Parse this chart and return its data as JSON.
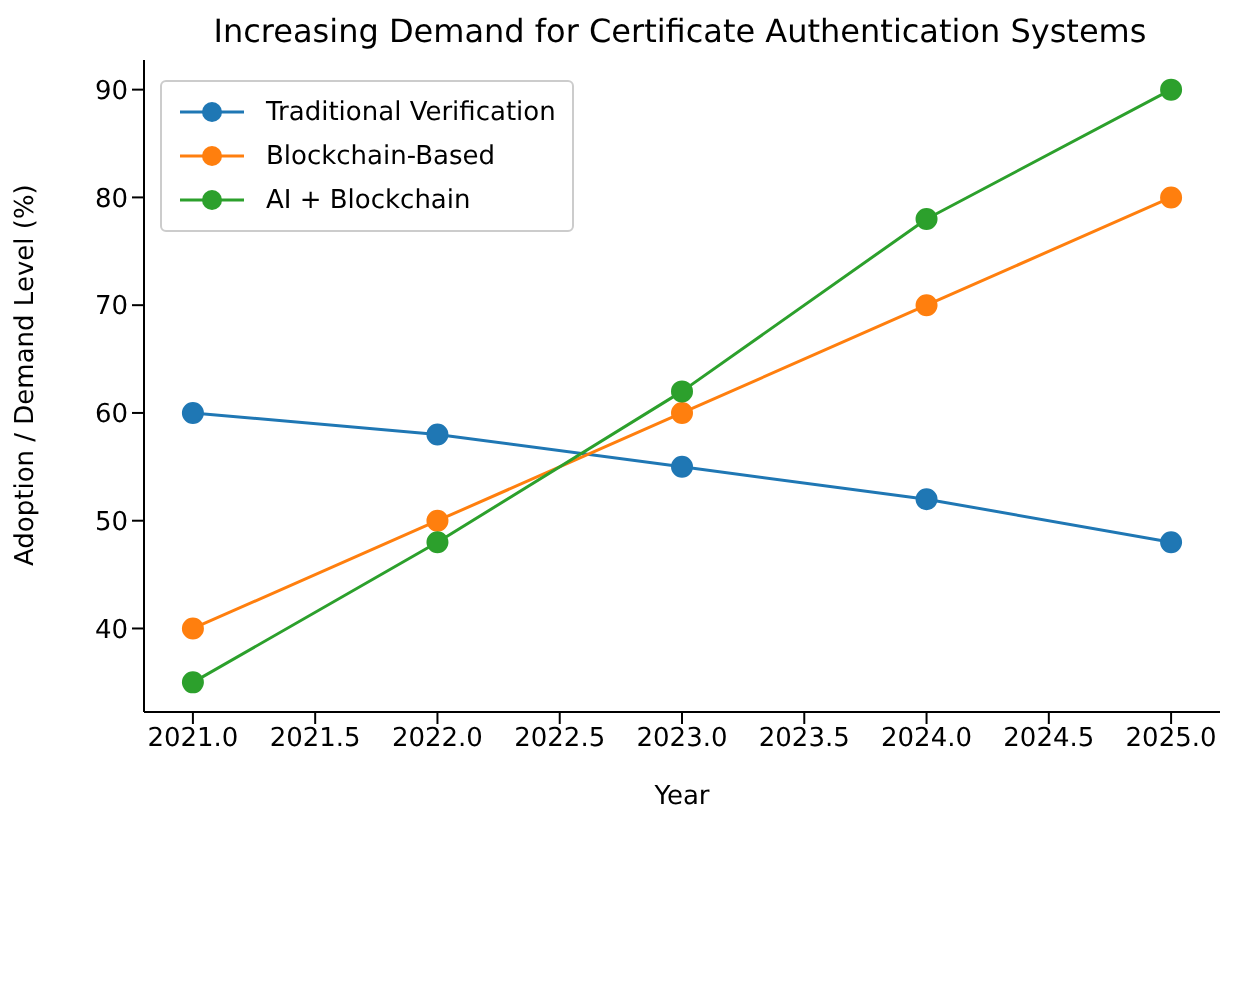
{
  "chart_data": {
    "type": "line",
    "title": "Increasing Demand for Certificate Authentication Systems",
    "xlabel": "Year",
    "ylabel": "Adoption / Demand Level (%)",
    "x": [
      2021,
      2022,
      2023,
      2024,
      2025
    ],
    "series": [
      {
        "name": "Traditional Verification",
        "color": "#1f77b4",
        "values": [
          60,
          58,
          55,
          52,
          48
        ]
      },
      {
        "name": "Blockchain-Based",
        "color": "#ff7f0e",
        "values": [
          40,
          50,
          60,
          70,
          80
        ]
      },
      {
        "name": "AI + Blockchain",
        "color": "#2ca02c",
        "values": [
          35,
          48,
          62,
          78,
          90
        ]
      }
    ],
    "xlim": [
      2020.8,
      2025.2
    ],
    "xticks": [
      {
        "value": 2021,
        "label": "2021.0"
      },
      {
        "value": 2021.5,
        "label": "2021.5"
      },
      {
        "value": 2022,
        "label": "2022.0"
      },
      {
        "value": 2022.5,
        "label": "2022.5"
      },
      {
        "value": 2023,
        "label": "2023.0"
      },
      {
        "value": 2023.5,
        "label": "2023.5"
      },
      {
        "value": 2024,
        "label": "2024.0"
      },
      {
        "value": 2024.5,
        "label": "2024.5"
      },
      {
        "value": 2025,
        "label": "2025.0"
      }
    ],
    "ylim": [
      32.25,
      92.75
    ],
    "yticks": [
      40,
      50,
      60,
      70,
      80,
      90
    ],
    "grid": false,
    "legend": "top left",
    "marker": "circle",
    "line_style": "solid"
  }
}
